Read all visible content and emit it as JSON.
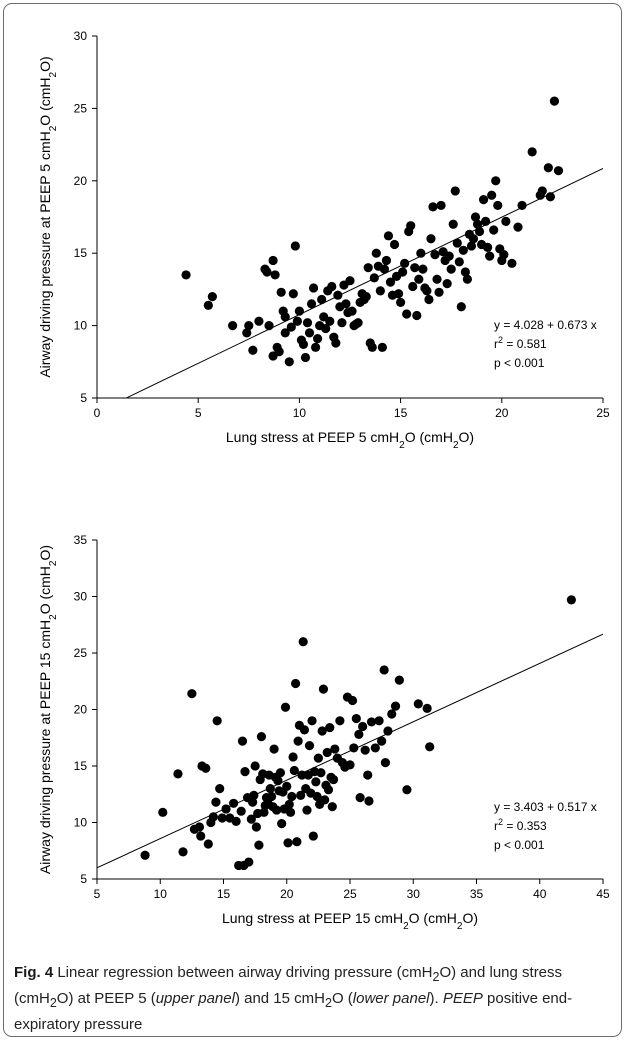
{
  "chart_data": [
    {
      "type": "scatter",
      "xlabel": "Lung stress at PEEP 5 cmH2O (cmH2O)",
      "ylabel": "Airway driving pressure at PEEP 5 cmH2O (cmH2O)",
      "xlim": [
        0,
        25
      ],
      "ylim": [
        5,
        30
      ],
      "xticks": [
        0,
        5,
        10,
        15,
        20,
        25
      ],
      "yticks": [
        5,
        10,
        15,
        20,
        25,
        30
      ],
      "regression": {
        "intercept": 4.028,
        "slope": 0.673
      },
      "annotations": [
        "y = 4.028 + 0.673 x",
        "r² = 0.581",
        "p < 0.001"
      ],
      "points": [
        [
          4.4,
          13.5
        ],
        [
          5.5,
          11.4
        ],
        [
          5.7,
          12.0
        ],
        [
          6.7,
          10.0
        ],
        [
          7.4,
          9.5
        ],
        [
          7.5,
          10.0
        ],
        [
          7.7,
          8.3
        ],
        [
          8.0,
          10.3
        ],
        [
          8.3,
          13.9
        ],
        [
          8.4,
          13.7
        ],
        [
          8.5,
          10.0
        ],
        [
          8.7,
          14.5
        ],
        [
          8.8,
          13.5
        ],
        [
          8.7,
          7.9
        ],
        [
          8.9,
          8.5
        ],
        [
          9.0,
          8.2
        ],
        [
          9.1,
          12.3
        ],
        [
          9.2,
          11.0
        ],
        [
          9.3,
          10.6
        ],
        [
          9.3,
          9.5
        ],
        [
          9.5,
          7.5
        ],
        [
          9.6,
          9.9
        ],
        [
          9.7,
          12.2
        ],
        [
          9.8,
          15.5
        ],
        [
          9.9,
          10.3
        ],
        [
          10.0,
          11.0
        ],
        [
          10.1,
          9.0
        ],
        [
          10.2,
          8.7
        ],
        [
          10.3,
          7.8
        ],
        [
          10.4,
          10.2
        ],
        [
          10.5,
          9.5
        ],
        [
          10.6,
          11.5
        ],
        [
          10.7,
          12.6
        ],
        [
          10.8,
          8.5
        ],
        [
          10.9,
          9.1
        ],
        [
          11.0,
          10.0
        ],
        [
          11.1,
          11.8
        ],
        [
          11.2,
          10.6
        ],
        [
          11.3,
          9.8
        ],
        [
          11.4,
          12.4
        ],
        [
          11.5,
          10.3
        ],
        [
          11.6,
          12.7
        ],
        [
          11.7,
          9.2
        ],
        [
          11.8,
          8.8
        ],
        [
          11.9,
          12.1
        ],
        [
          12.0,
          11.3
        ],
        [
          12.1,
          10.2
        ],
        [
          12.2,
          12.8
        ],
        [
          12.3,
          11.5
        ],
        [
          12.4,
          10.9
        ],
        [
          12.5,
          13.1
        ],
        [
          12.6,
          11.0
        ],
        [
          12.7,
          10.0
        ],
        [
          12.8,
          10.1
        ],
        [
          12.9,
          10.2
        ],
        [
          13.0,
          11.6
        ],
        [
          13.1,
          12.2
        ],
        [
          13.2,
          11.8
        ],
        [
          13.3,
          12.0
        ],
        [
          13.4,
          14.0
        ],
        [
          13.5,
          8.8
        ],
        [
          13.6,
          8.5
        ],
        [
          13.7,
          13.3
        ],
        [
          13.8,
          15.0
        ],
        [
          13.9,
          14.1
        ],
        [
          14.0,
          12.4
        ],
        [
          14.1,
          8.5
        ],
        [
          14.2,
          13.9
        ],
        [
          14.3,
          14.5
        ],
        [
          14.4,
          16.2
        ],
        [
          14.5,
          13.0
        ],
        [
          14.6,
          12.1
        ],
        [
          14.7,
          15.6
        ],
        [
          14.8,
          13.4
        ],
        [
          14.9,
          12.2
        ],
        [
          15.0,
          11.6
        ],
        [
          15.1,
          13.7
        ],
        [
          15.2,
          14.3
        ],
        [
          15.3,
          10.8
        ],
        [
          15.4,
          16.5
        ],
        [
          15.5,
          16.9
        ],
        [
          15.6,
          12.7
        ],
        [
          15.7,
          14.0
        ],
        [
          15.8,
          10.7
        ],
        [
          15.9,
          13.2
        ],
        [
          16.0,
          15.0
        ],
        [
          16.1,
          13.9
        ],
        [
          16.2,
          12.6
        ],
        [
          16.3,
          12.4
        ],
        [
          16.4,
          11.8
        ],
        [
          16.5,
          16.0
        ],
        [
          16.6,
          18.2
        ],
        [
          16.7,
          14.9
        ],
        [
          16.8,
          13.2
        ],
        [
          16.9,
          12.3
        ],
        [
          17.0,
          18.3
        ],
        [
          17.1,
          15.1
        ],
        [
          17.2,
          14.5
        ],
        [
          17.3,
          12.9
        ],
        [
          17.4,
          14.8
        ],
        [
          17.5,
          13.9
        ],
        [
          17.6,
          17.0
        ],
        [
          17.7,
          19.3
        ],
        [
          17.8,
          15.7
        ],
        [
          17.9,
          14.4
        ],
        [
          18.0,
          11.3
        ],
        [
          18.1,
          15.2
        ],
        [
          18.2,
          13.7
        ],
        [
          18.3,
          13.2
        ],
        [
          18.4,
          16.3
        ],
        [
          18.5,
          15.5
        ],
        [
          18.6,
          16.0
        ],
        [
          18.7,
          17.5
        ],
        [
          18.8,
          17.0
        ],
        [
          18.9,
          16.5
        ],
        [
          19.0,
          15.6
        ],
        [
          19.1,
          18.7
        ],
        [
          19.2,
          17.2
        ],
        [
          19.3,
          15.4
        ],
        [
          19.4,
          14.8
        ],
        [
          19.5,
          19.0
        ],
        [
          19.6,
          16.6
        ],
        [
          19.7,
          20.0
        ],
        [
          19.8,
          18.3
        ],
        [
          19.9,
          15.3
        ],
        [
          20.0,
          14.5
        ],
        [
          20.1,
          14.9
        ],
        [
          20.2,
          17.2
        ],
        [
          20.5,
          14.3
        ],
        [
          20.8,
          16.8
        ],
        [
          21.0,
          18.3
        ],
        [
          21.5,
          22.0
        ],
        [
          21.9,
          19.0
        ],
        [
          22.0,
          19.3
        ],
        [
          22.3,
          20.9
        ],
        [
          22.4,
          18.9
        ],
        [
          22.8,
          20.7
        ],
        [
          22.6,
          25.5
        ]
      ]
    },
    {
      "type": "scatter",
      "xlabel": "Lung stress at PEEP 15 cmH2O (cmH2O)",
      "ylabel": "Airway driving pressure at PEEP 15 cmH2O (cmH2O)",
      "xlim": [
        5,
        45
      ],
      "ylim": [
        5,
        35
      ],
      "xticks": [
        5,
        10,
        15,
        20,
        25,
        30,
        35,
        40,
        45
      ],
      "yticks": [
        5,
        10,
        15,
        20,
        25,
        30,
        35
      ],
      "regression": {
        "intercept": 3.403,
        "slope": 0.517
      },
      "annotations": [
        "y = 3.403 + 0.517 x",
        "r² = 0.353",
        "p < 0.001"
      ],
      "points": [
        [
          8.8,
          7.1
        ],
        [
          10.2,
          10.9
        ],
        [
          11.4,
          14.3
        ],
        [
          11.8,
          7.4
        ],
        [
          12.5,
          21.4
        ],
        [
          12.7,
          9.4
        ],
        [
          13.1,
          9.6
        ],
        [
          13.2,
          8.8
        ],
        [
          13.3,
          15.0
        ],
        [
          13.6,
          14.8
        ],
        [
          13.8,
          8.1
        ],
        [
          14.0,
          10.0
        ],
        [
          14.2,
          10.5
        ],
        [
          14.4,
          11.8
        ],
        [
          14.5,
          19.0
        ],
        [
          14.7,
          13.0
        ],
        [
          14.9,
          10.4
        ],
        [
          15.2,
          11.2
        ],
        [
          15.5,
          10.4
        ],
        [
          15.8,
          11.7
        ],
        [
          16.0,
          10.1
        ],
        [
          16.2,
          6.2
        ],
        [
          16.4,
          11.0
        ],
        [
          16.5,
          17.2
        ],
        [
          16.6,
          6.2
        ],
        [
          16.7,
          14.5
        ],
        [
          16.9,
          12.2
        ],
        [
          17.0,
          6.5
        ],
        [
          17.2,
          10.3
        ],
        [
          17.3,
          11.8
        ],
        [
          17.4,
          12.4
        ],
        [
          17.5,
          15.0
        ],
        [
          17.6,
          9.6
        ],
        [
          17.7,
          10.8
        ],
        [
          17.8,
          8.0
        ],
        [
          17.9,
          13.8
        ],
        [
          18.0,
          17.6
        ],
        [
          18.1,
          14.3
        ],
        [
          18.2,
          10.9
        ],
        [
          18.3,
          11.5
        ],
        [
          18.4,
          12.2
        ],
        [
          18.5,
          11.7
        ],
        [
          18.6,
          14.2
        ],
        [
          18.7,
          13.0
        ],
        [
          18.8,
          12.3
        ],
        [
          18.9,
          11.4
        ],
        [
          19.0,
          16.5
        ],
        [
          19.1,
          14.0
        ],
        [
          19.2,
          11.1
        ],
        [
          19.3,
          13.7
        ],
        [
          19.4,
          12.8
        ],
        [
          19.5,
          14.4
        ],
        [
          19.6,
          9.9
        ],
        [
          19.7,
          12.7
        ],
        [
          19.8,
          11.2
        ],
        [
          19.9,
          20.2
        ],
        [
          20.0,
          13.2
        ],
        [
          20.1,
          8.2
        ],
        [
          20.2,
          11.6
        ],
        [
          20.3,
          10.9
        ],
        [
          20.4,
          12.3
        ],
        [
          20.5,
          15.8
        ],
        [
          20.6,
          14.6
        ],
        [
          20.7,
          22.3
        ],
        [
          20.8,
          8.3
        ],
        [
          20.9,
          17.2
        ],
        [
          21.0,
          18.6
        ],
        [
          21.1,
          12.4
        ],
        [
          21.2,
          14.2
        ],
        [
          21.3,
          26.0
        ],
        [
          21.4,
          18.2
        ],
        [
          21.5,
          13.0
        ],
        [
          21.6,
          11.1
        ],
        [
          21.7,
          14.2
        ],
        [
          21.8,
          16.8
        ],
        [
          21.9,
          12.6
        ],
        [
          22.0,
          19.0
        ],
        [
          22.1,
          8.8
        ],
        [
          22.2,
          14.5
        ],
        [
          22.3,
          13.6
        ],
        [
          22.4,
          12.3
        ],
        [
          22.5,
          15.7
        ],
        [
          22.6,
          11.6
        ],
        [
          22.7,
          14.4
        ],
        [
          22.8,
          18.1
        ],
        [
          22.9,
          21.8
        ],
        [
          23.0,
          12.0
        ],
        [
          23.1,
          13.3
        ],
        [
          23.2,
          16.2
        ],
        [
          23.3,
          12.9
        ],
        [
          23.4,
          18.4
        ],
        [
          23.5,
          14.0
        ],
        [
          23.6,
          11.4
        ],
        [
          23.7,
          13.8
        ],
        [
          23.8,
          16.5
        ],
        [
          24.0,
          15.7
        ],
        [
          24.2,
          19.0
        ],
        [
          24.4,
          15.3
        ],
        [
          24.6,
          14.9
        ],
        [
          24.8,
          21.1
        ],
        [
          25.0,
          15.1
        ],
        [
          25.2,
          20.8
        ],
        [
          25.3,
          16.6
        ],
        [
          25.5,
          19.2
        ],
        [
          25.7,
          17.8
        ],
        [
          25.8,
          12.2
        ],
        [
          26.0,
          18.5
        ],
        [
          26.2,
          16.4
        ],
        [
          26.4,
          14.2
        ],
        [
          26.5,
          11.9
        ],
        [
          26.7,
          18.9
        ],
        [
          27.0,
          16.6
        ],
        [
          27.3,
          19.0
        ],
        [
          27.5,
          17.2
        ],
        [
          27.7,
          23.5
        ],
        [
          27.8,
          15.3
        ],
        [
          28.0,
          18.1
        ],
        [
          28.3,
          19.6
        ],
        [
          28.6,
          20.3
        ],
        [
          28.9,
          22.6
        ],
        [
          29.5,
          12.9
        ],
        [
          30.4,
          20.5
        ],
        [
          31.1,
          20.1
        ],
        [
          31.3,
          16.7
        ],
        [
          42.5,
          29.7
        ]
      ]
    }
  ],
  "caption": {
    "fig_label": "Fig. 4",
    "part1": " Linear regression between airway driving pressure (cmH",
    "sub1": "2",
    "part2": "O) and lung stress (cmH",
    "sub2": "2",
    "part3": "O) at PEEP 5 (",
    "italic1": "upper panel",
    "part4": ") and 15 cmH",
    "sub3": "2",
    "part5": "O (",
    "italic2": "lower panel",
    "part6": "). ",
    "italic3": "PEEP",
    "part7": " positive end-expiratory pressure"
  }
}
